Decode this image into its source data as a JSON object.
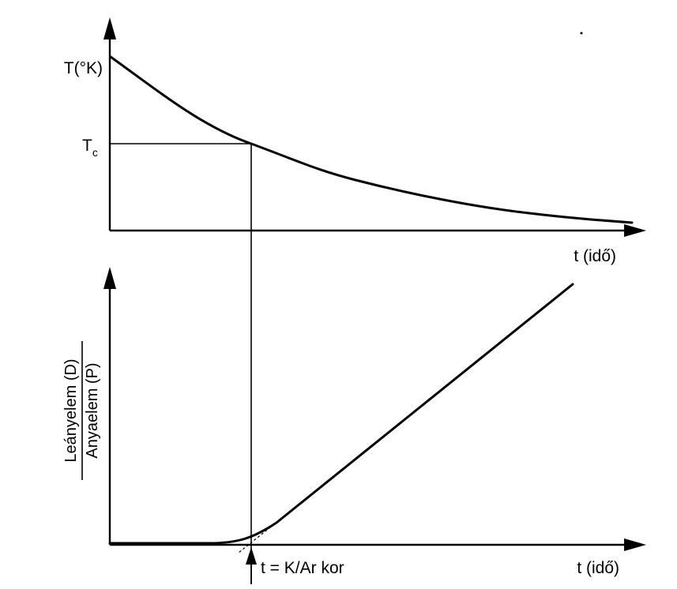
{
  "top_graph": {
    "y_label": "T(°K)",
    "tc_label_main": "T",
    "tc_label_sub": "c",
    "x_label": "t (idő)"
  },
  "bottom_graph": {
    "y_label_numerator": "Leányelem (D)",
    "y_label_denominator": "Anyaelem (P)",
    "x_label": "t (idő)",
    "marker_label": "t = K/Ar kor"
  }
}
